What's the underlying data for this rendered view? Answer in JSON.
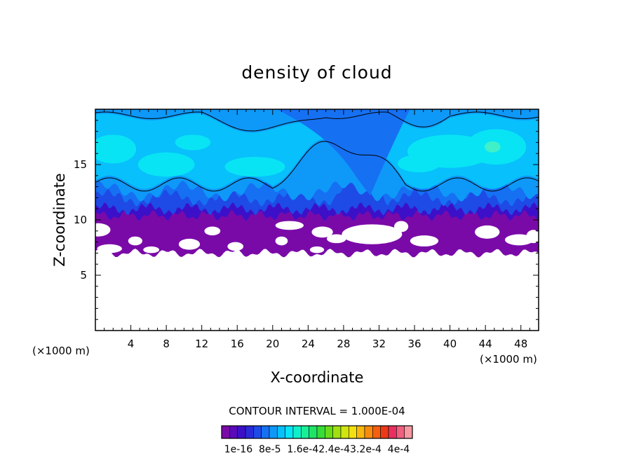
{
  "chart_data": {
    "type": "heatmap",
    "title": "density of cloud",
    "xlabel": "X-coordinate",
    "ylabel": "Z-coordinate",
    "x_unit": "(×1000 m)",
    "z_unit": "(×1000 m)",
    "xlim": [
      0,
      50
    ],
    "ylim": [
      0,
      20
    ],
    "x_ticks": [
      4,
      8,
      12,
      16,
      20,
      24,
      28,
      32,
      36,
      40,
      44,
      48
    ],
    "x_tick_labels": [
      "4",
      "8",
      "12",
      "16",
      "20",
      "24",
      "28",
      "32",
      "36",
      "40",
      "44",
      "48"
    ],
    "y_ticks": [
      5,
      10,
      15
    ],
    "y_tick_labels": [
      "5",
      "10",
      "15"
    ],
    "contour_interval_text": "CONTOUR INTERVAL = 1.000E-04",
    "colorbar": {
      "labels": [
        "1e-16",
        "8e-5",
        "1.6e-4",
        "2.4e-4",
        "3.2e-4",
        "4e-4"
      ],
      "label_text": "1e-16  8e-5  1.6e-42.4e-43.2e-4  4e-4",
      "colors": [
        "#7a0aa8",
        "#5a0ab8",
        "#3c10c8",
        "#2a2ad8",
        "#1e4ae6",
        "#1670f2",
        "#0e98f8",
        "#08c0fc",
        "#08e4f4",
        "#10f0c8",
        "#18f098",
        "#20e468",
        "#38dc38",
        "#68dc18",
        "#a0e010",
        "#d0e410",
        "#f4e010",
        "#f8b810",
        "#f88c10",
        "#f46010",
        "#ec3a18",
        "#e83060",
        "#f06080",
        "#f898a0"
      ]
    },
    "cloud_layers": {
      "colors": {
        "level1": "#7a0aa8",
        "level2": "#3c10c8",
        "level3": "#1e4ae6",
        "level4": "#1670f2",
        "level5": "#0e98f8",
        "level6": "#08c0fc",
        "level7": "#08e4f4"
      }
    }
  }
}
